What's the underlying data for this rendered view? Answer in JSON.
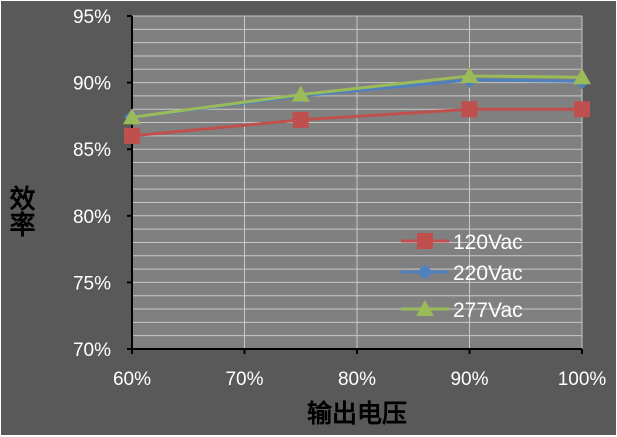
{
  "chart_data": {
    "type": "line",
    "title": "",
    "xlabel": "输出电压",
    "ylabel": "效率",
    "x": [
      60,
      75,
      90,
      100
    ],
    "x_ticks": [
      "60%",
      "70%",
      "80%",
      "90%",
      "100%"
    ],
    "x_tick_values": [
      60,
      70,
      80,
      90,
      100
    ],
    "xlim": [
      60,
      100
    ],
    "y_ticks": [
      "70%",
      "75%",
      "80%",
      "85%",
      "90%",
      "95%"
    ],
    "y_tick_values": [
      70,
      75,
      80,
      85,
      90,
      95
    ],
    "ylim": [
      70,
      95
    ],
    "grid": true,
    "legend_position": "bottom-right",
    "series": [
      {
        "name": "120Vac",
        "values": [
          86.0,
          87.2,
          88.0,
          88.0
        ],
        "color": "#c0504d",
        "marker": "square"
      },
      {
        "name": "220Vac",
        "values": [
          87.4,
          89.0,
          90.2,
          90.1
        ],
        "color": "#4f81bd",
        "marker": "diamond"
      },
      {
        "name": "277Vac",
        "values": [
          87.4,
          89.1,
          90.5,
          90.4
        ],
        "color": "#9bbb59",
        "marker": "triangle"
      }
    ]
  },
  "colors": {
    "background": "#595959",
    "plot_area": "#808080",
    "grid": "#c8c8c8",
    "axis": "#000000",
    "tick_text": "#ffffff"
  }
}
